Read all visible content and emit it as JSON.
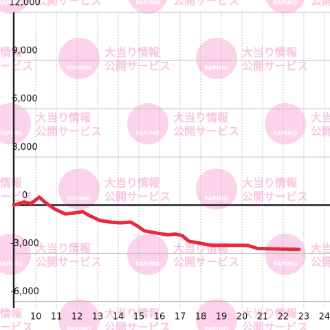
{
  "chart_data": {
    "type": "line",
    "x": [
      8.93,
      9.43,
      9.77,
      10.17,
      10.43,
      10.93,
      11.43,
      11.77,
      12.27,
      12.6,
      13.1,
      13.6,
      14.1,
      14.6,
      14.93,
      15.27,
      15.93,
      16.43,
      16.77,
      17.1,
      17.43,
      17.93,
      18.27,
      18.6,
      20.27,
      20.77,
      22.77
    ],
    "series": [
      {
        "color": "#e8283c",
        "values": [
          0,
          200,
          100,
          500,
          200,
          -250,
          -550,
          -500,
          -400,
          -650,
          -950,
          -1050,
          -1100,
          -1050,
          -1300,
          -1600,
          -1750,
          -1850,
          -1800,
          -1900,
          -2250,
          -2350,
          -2450,
          -2500,
          -2500,
          -2700,
          -2750
        ]
      }
    ],
    "xlim": [
      8.93,
      24.27
    ],
    "xticks": [
      10,
      11,
      12,
      13,
      14,
      15,
      16,
      17,
      18,
      19,
      20,
      21,
      22,
      23,
      24
    ],
    "ylim": [
      -6400,
      12000
    ],
    "yticks": [
      {
        "value": -6000,
        "label": "-6,000"
      },
      {
        "value": -3000,
        "label": "-3,000"
      },
      0,
      {
        "value": 3000,
        "label": "3,000"
      },
      {
        "value": 6000,
        "label": "6,000"
      },
      {
        "value": 9000,
        "label": "9,000"
      },
      {
        "value": 12000,
        "label": "12,000"
      }
    ],
    "grid": true
  },
  "watermark": {
    "logo": "PAPIMO",
    "line1": "大当り情報",
    "line2": "公開サービス"
  }
}
